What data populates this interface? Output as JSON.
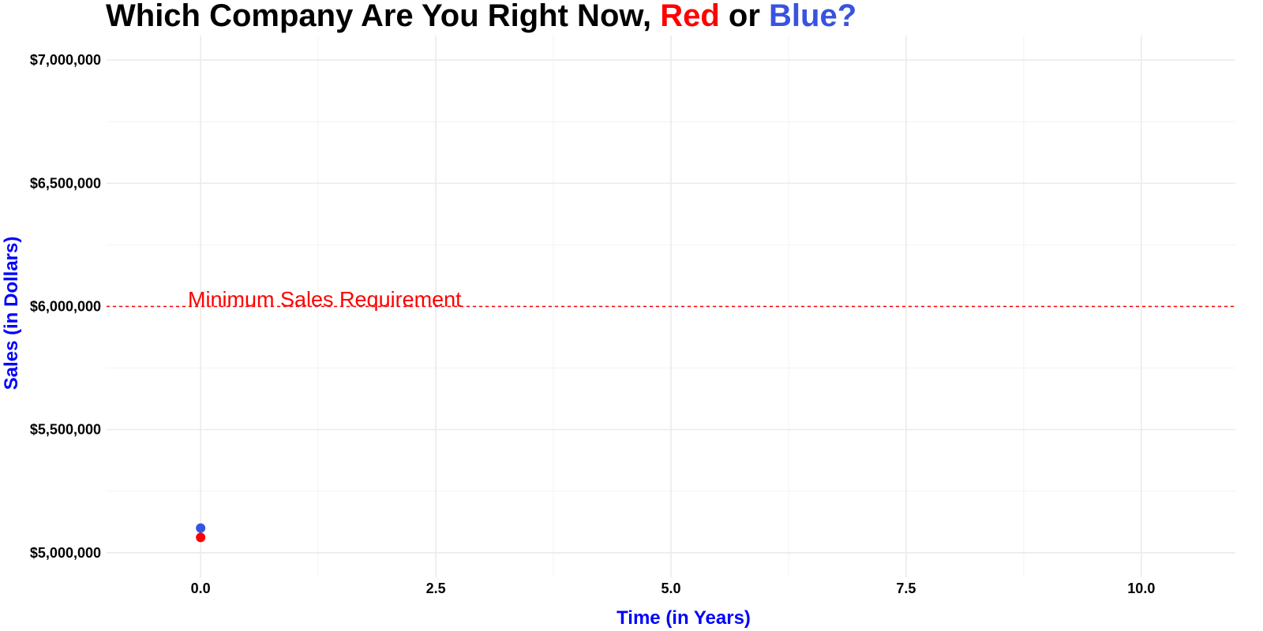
{
  "chart_data": {
    "type": "scatter",
    "title": {
      "parts": [
        {
          "text": "Which Company Are You Right Now, ",
          "color": "#000000"
        },
        {
          "text": "Red",
          "color": "#ff0000"
        },
        {
          "text": " or ",
          "color": "#000000"
        },
        {
          "text": "Blue?",
          "color": "#3753e0"
        }
      ]
    },
    "xlabel": "Time (in Years)",
    "ylabel": "Sales (in Dollars)",
    "axis_title_color": "#0000ff",
    "xlim": [
      -1,
      11
    ],
    "ylim": [
      4900000,
      7100000
    ],
    "x_ticks": [
      0,
      2.5,
      5,
      7.5,
      10
    ],
    "x_tick_labels": [
      "0.0",
      "2.5",
      "5.0",
      "7.5",
      "10.0"
    ],
    "y_ticks": [
      5000000,
      5500000,
      6000000,
      6500000,
      7000000
    ],
    "y_tick_labels": [
      "$5,000,000",
      "$5,500,000",
      "$6,000,000",
      "$6,500,000",
      "$7,000,000"
    ],
    "grid": true,
    "series": [
      {
        "color": "#3753e0",
        "points": [
          {
            "x": 0,
            "y": 5100000
          }
        ]
      },
      {
        "color": "#ff0000",
        "points": [
          {
            "x": 0,
            "y": 5062000
          }
        ]
      }
    ],
    "reference_line": {
      "y": 6000000,
      "label": "Minimum Sales Requirement",
      "color": "#ff0000",
      "style": "dashed"
    }
  }
}
